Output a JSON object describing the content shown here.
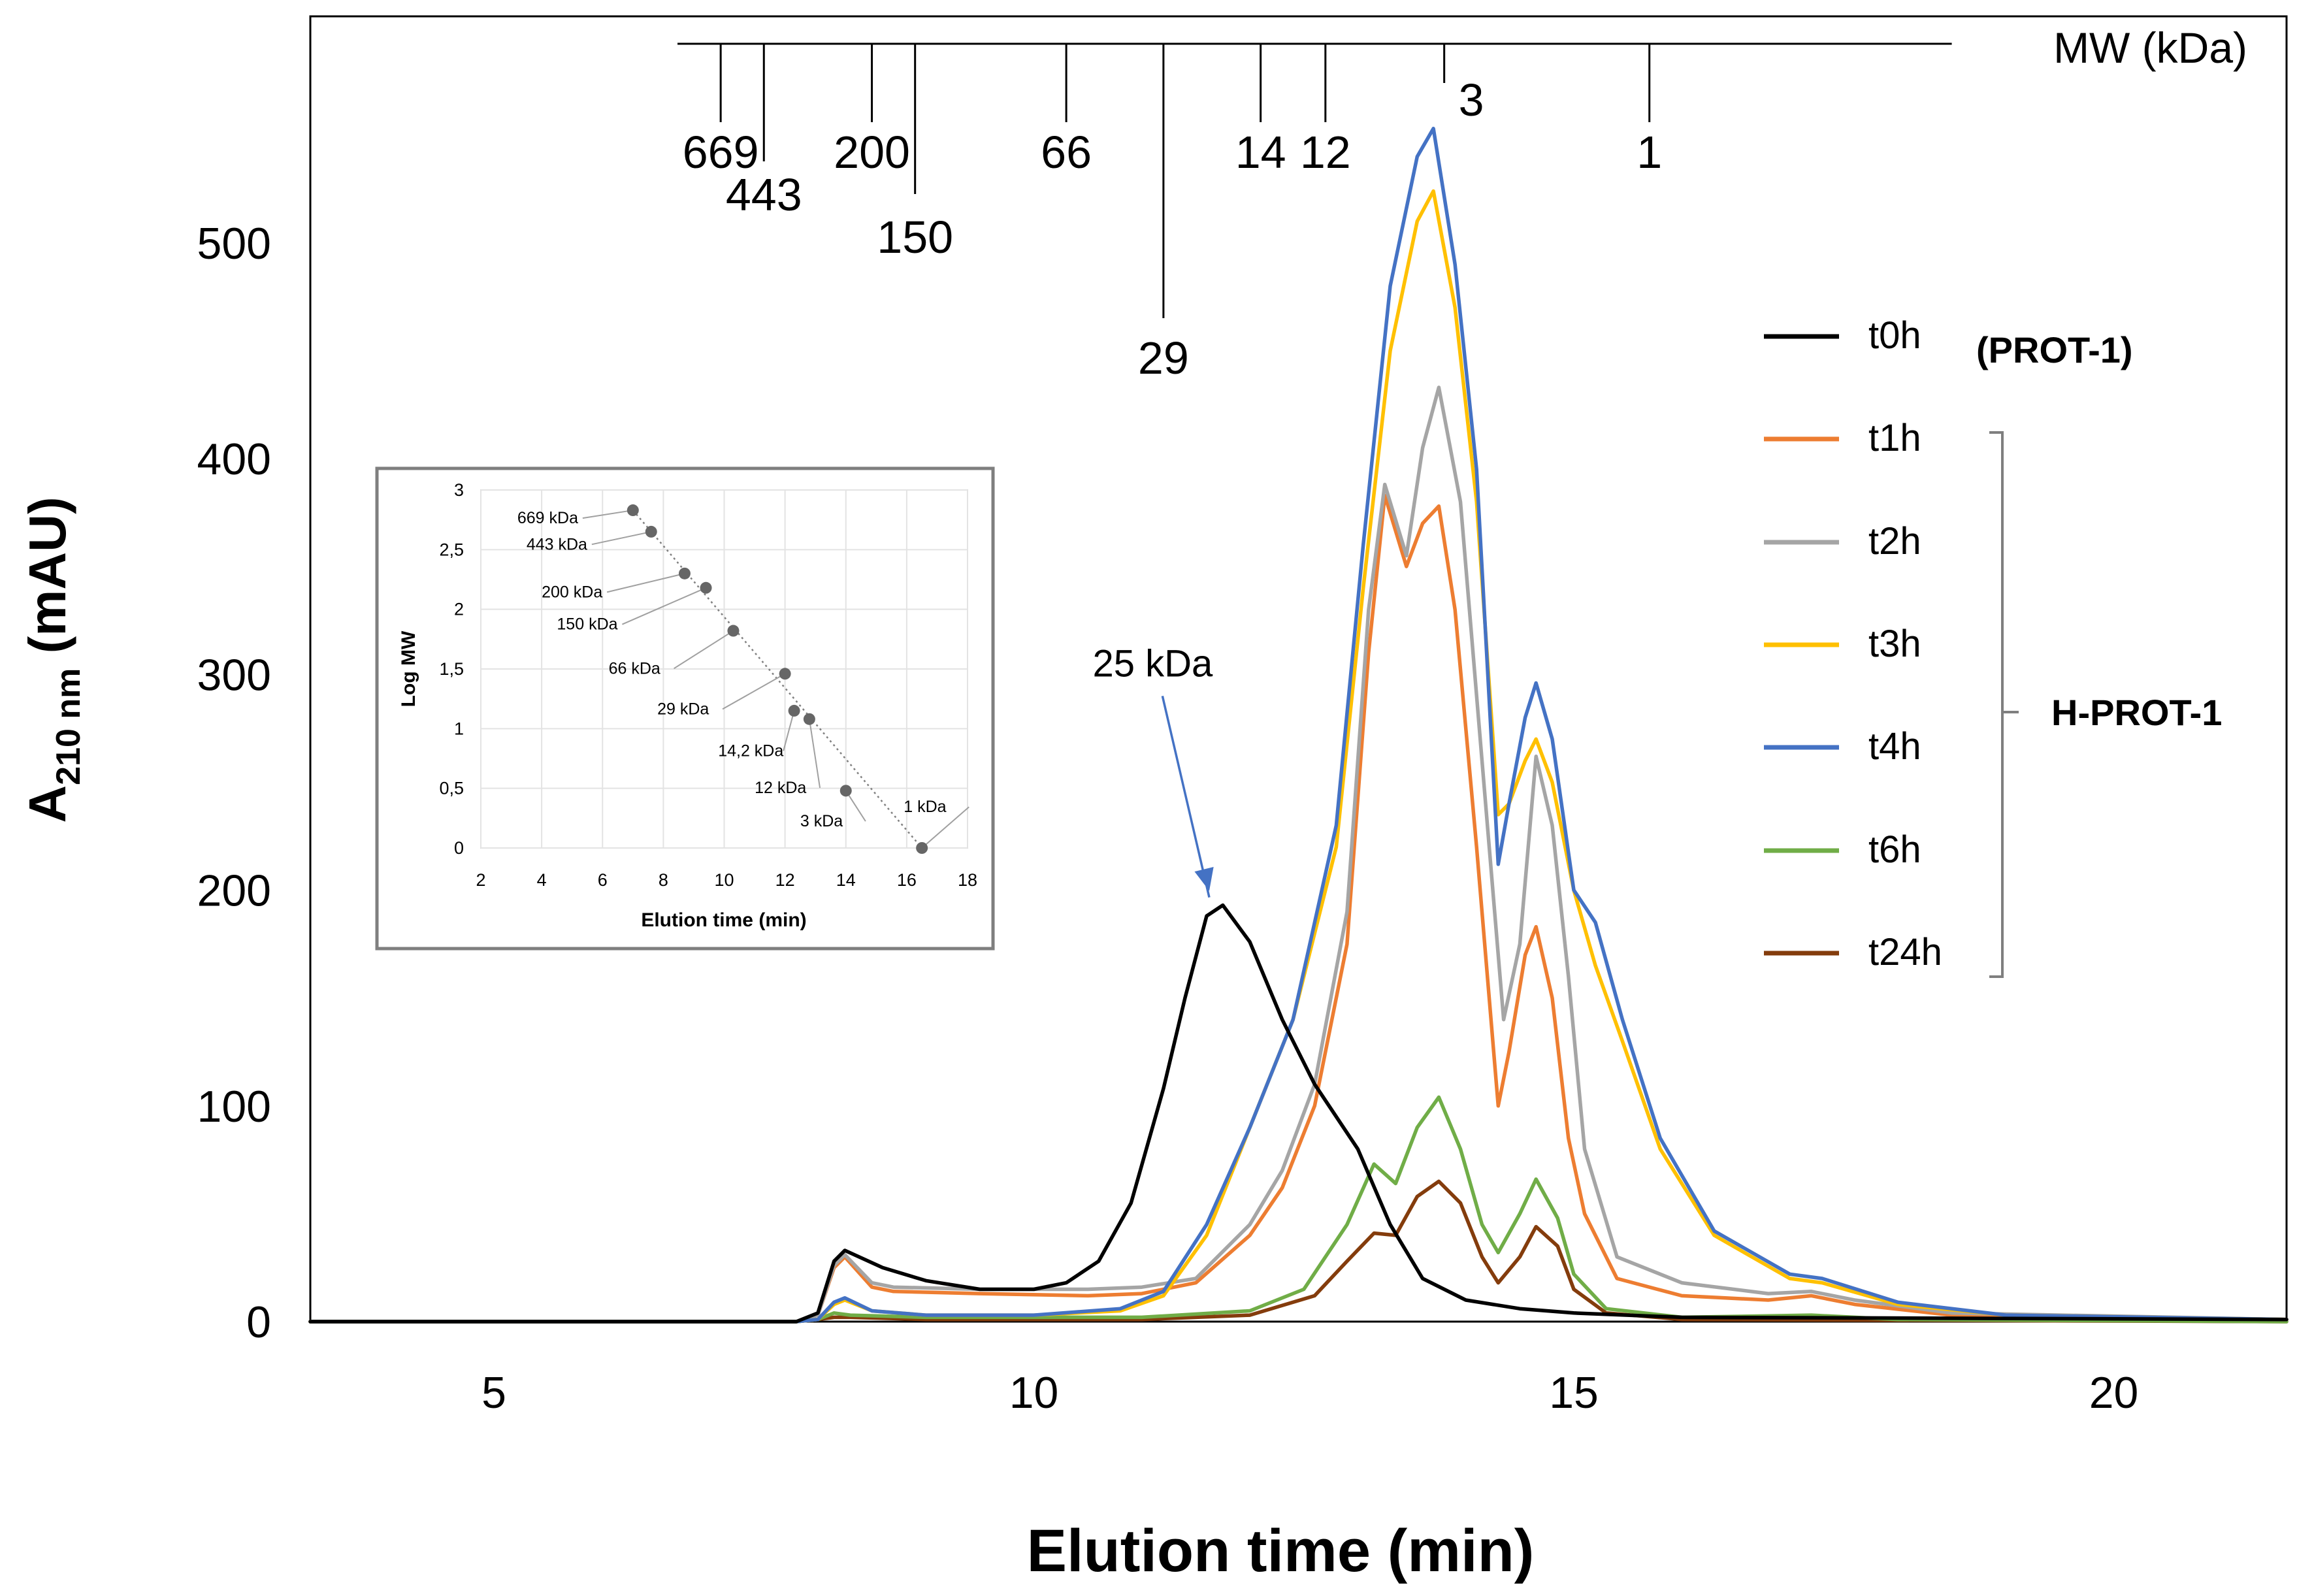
{
  "chart_data": [
    {
      "type": "line",
      "title": "",
      "xlabel": "Elution time (min)",
      "ylabel_main": "A",
      "ylabel_sub": "210 nm",
      "ylabel_unit": " (mAU)",
      "xlim": [
        3.3,
        21.6
      ],
      "ylim": [
        0,
        605
      ],
      "xticks": [
        5,
        10,
        15,
        20
      ],
      "yticks": [
        0,
        100,
        200,
        300,
        400,
        500
      ],
      "grid": false,
      "legend_position": "right",
      "group_label_prot1": "(PROT-1)",
      "group_label_hprot1": "H-PROT-1",
      "annotation": {
        "text": "25 kDa",
        "x": 11.6,
        "y": 193,
        "text_x": 11.1,
        "text_y": 293
      },
      "mw_scale": {
        "label": "MW (kDa)",
        "x_range": [
          6.7,
          18.5
        ],
        "markers": [
          {
            "label": "669",
            "x": 7.1,
            "level": 0
          },
          {
            "label": "443",
            "x": 7.5,
            "level": 2
          },
          {
            "label": "200",
            "x": 8.5,
            "level": 0
          },
          {
            "label": "150",
            "x": 8.9,
            "level": 1
          },
          {
            "label": "66",
            "x": 10.3,
            "level": 0
          },
          {
            "label": "29",
            "x": 11.2,
            "level": 3
          },
          {
            "label": "14",
            "x": 12.1,
            "level": 0
          },
          {
            "label": "12",
            "x": 12.7,
            "level": 0
          },
          {
            "label": "3",
            "x": 13.8,
            "level": 4
          },
          {
            "label": "1",
            "x": 15.7,
            "level": 0
          }
        ]
      },
      "series": [
        {
          "name": "t0h",
          "color": "#000000",
          "points": [
            [
              3.3,
              0
            ],
            [
              7.8,
              0
            ],
            [
              8.0,
              4
            ],
            [
              8.15,
              28
            ],
            [
              8.25,
              33
            ],
            [
              8.6,
              25
            ],
            [
              9.0,
              19
            ],
            [
              9.5,
              15
            ],
            [
              10.0,
              15
            ],
            [
              10.3,
              18
            ],
            [
              10.6,
              28
            ],
            [
              10.9,
              55
            ],
            [
              11.2,
              108
            ],
            [
              11.4,
              150
            ],
            [
              11.6,
              188
            ],
            [
              11.75,
              193
            ],
            [
              12.0,
              176
            ],
            [
              12.3,
              140
            ],
            [
              12.6,
              110
            ],
            [
              13.0,
              80
            ],
            [
              13.3,
              45
            ],
            [
              13.6,
              20
            ],
            [
              14.0,
              10
            ],
            [
              14.5,
              6
            ],
            [
              15.0,
              4
            ],
            [
              16.0,
              2
            ],
            [
              21.6,
              1
            ]
          ]
        },
        {
          "name": "t1h",
          "color": "#ed7d31",
          "points": [
            [
              3.3,
              0
            ],
            [
              7.8,
              0
            ],
            [
              8.0,
              3
            ],
            [
              8.15,
              25
            ],
            [
              8.25,
              30
            ],
            [
              8.5,
              16
            ],
            [
              8.7,
              14
            ],
            [
              9.5,
              13
            ],
            [
              10.5,
              12
            ],
            [
              11.0,
              13
            ],
            [
              11.5,
              18
            ],
            [
              12.0,
              40
            ],
            [
              12.3,
              62
            ],
            [
              12.6,
              100
            ],
            [
              12.9,
              175
            ],
            [
              13.1,
              310
            ],
            [
              13.25,
              383
            ],
            [
              13.45,
              350
            ],
            [
              13.6,
              370
            ],
            [
              13.75,
              378
            ],
            [
              13.9,
              330
            ],
            [
              14.1,
              220
            ],
            [
              14.3,
              100
            ],
            [
              14.4,
              125
            ],
            [
              14.55,
              170
            ],
            [
              14.65,
              183
            ],
            [
              14.8,
              150
            ],
            [
              14.95,
              85
            ],
            [
              15.1,
              50
            ],
            [
              15.4,
              20
            ],
            [
              16.0,
              12
            ],
            [
              16.8,
              10
            ],
            [
              17.2,
              12
            ],
            [
              17.6,
              8
            ],
            [
              18.5,
              3
            ],
            [
              21.6,
              1
            ]
          ]
        },
        {
          "name": "t2h",
          "color": "#a5a5a5",
          "points": [
            [
              3.3,
              0
            ],
            [
              7.8,
              0
            ],
            [
              8.0,
              3
            ],
            [
              8.15,
              26
            ],
            [
              8.25,
              31
            ],
            [
              8.5,
              18
            ],
            [
              8.7,
              16
            ],
            [
              9.5,
              15
            ],
            [
              10.5,
              15
            ],
            [
              11.0,
              16
            ],
            [
              11.5,
              20
            ],
            [
              12.0,
              45
            ],
            [
              12.3,
              70
            ],
            [
              12.6,
              110
            ],
            [
              12.9,
              190
            ],
            [
              13.1,
              330
            ],
            [
              13.25,
              388
            ],
            [
              13.45,
              355
            ],
            [
              13.6,
              405
            ],
            [
              13.75,
              433
            ],
            [
              13.95,
              380
            ],
            [
              14.15,
              260
            ],
            [
              14.35,
              140
            ],
            [
              14.5,
              175
            ],
            [
              14.65,
              262
            ],
            [
              14.8,
              230
            ],
            [
              14.95,
              160
            ],
            [
              15.1,
              80
            ],
            [
              15.4,
              30
            ],
            [
              16.0,
              18
            ],
            [
              16.8,
              13
            ],
            [
              17.2,
              14
            ],
            [
              17.6,
              10
            ],
            [
              18.5,
              4
            ],
            [
              21.6,
              1
            ]
          ]
        },
        {
          "name": "t3h",
          "color": "#ffc000",
          "points": [
            [
              3.3,
              0
            ],
            [
              7.8,
              0
            ],
            [
              8.0,
              1
            ],
            [
              8.15,
              8
            ],
            [
              8.25,
              10
            ],
            [
              8.5,
              5
            ],
            [
              9.0,
              3
            ],
            [
              10.0,
              3
            ],
            [
              10.8,
              5
            ],
            [
              11.2,
              12
            ],
            [
              11.6,
              40
            ],
            [
              12.0,
              90
            ],
            [
              12.4,
              140
            ],
            [
              12.8,
              220
            ],
            [
              13.05,
              340
            ],
            [
              13.3,
              450
            ],
            [
              13.55,
              510
            ],
            [
              13.7,
              524
            ],
            [
              13.9,
              470
            ],
            [
              14.1,
              380
            ],
            [
              14.3,
              235
            ],
            [
              14.4,
              240
            ],
            [
              14.55,
              260
            ],
            [
              14.65,
              270
            ],
            [
              14.8,
              250
            ],
            [
              15.0,
              200
            ],
            [
              15.2,
              165
            ],
            [
              15.45,
              130
            ],
            [
              15.8,
              80
            ],
            [
              16.3,
              40
            ],
            [
              17.0,
              20
            ],
            [
              17.3,
              18
            ],
            [
              18.0,
              8
            ],
            [
              19.0,
              3
            ],
            [
              21.6,
              1
            ]
          ]
        },
        {
          "name": "t4h",
          "color": "#4472c4",
          "points": [
            [
              3.3,
              0
            ],
            [
              7.8,
              0
            ],
            [
              8.0,
              1
            ],
            [
              8.15,
              9
            ],
            [
              8.25,
              11
            ],
            [
              8.5,
              5
            ],
            [
              9.0,
              3
            ],
            [
              10.0,
              3
            ],
            [
              10.8,
              6
            ],
            [
              11.2,
              14
            ],
            [
              11.6,
              45
            ],
            [
              12.0,
              90
            ],
            [
              12.4,
              140
            ],
            [
              12.8,
              230
            ],
            [
              13.05,
              360
            ],
            [
              13.3,
              480
            ],
            [
              13.55,
              540
            ],
            [
              13.7,
              553
            ],
            [
              13.9,
              490
            ],
            [
              14.1,
              395
            ],
            [
              14.3,
              212
            ],
            [
              14.4,
              240
            ],
            [
              14.55,
              280
            ],
            [
              14.65,
              296
            ],
            [
              14.8,
              270
            ],
            [
              15.0,
              200
            ],
            [
              15.2,
              185
            ],
            [
              15.45,
              140
            ],
            [
              15.8,
              85
            ],
            [
              16.3,
              42
            ],
            [
              17.0,
              22
            ],
            [
              17.3,
              20
            ],
            [
              18.0,
              9
            ],
            [
              19.0,
              3
            ],
            [
              21.6,
              1
            ]
          ]
        },
        {
          "name": "t6h",
          "color": "#70ad47",
          "points": [
            [
              3.3,
              0
            ],
            [
              7.8,
              0
            ],
            [
              8.0,
              1
            ],
            [
              8.15,
              4
            ],
            [
              8.3,
              3
            ],
            [
              9.0,
              2
            ],
            [
              11.0,
              2
            ],
            [
              12.0,
              5
            ],
            [
              12.5,
              15
            ],
            [
              12.9,
              45
            ],
            [
              13.15,
              73
            ],
            [
              13.35,
              64
            ],
            [
              13.55,
              90
            ],
            [
              13.75,
              104
            ],
            [
              13.95,
              80
            ],
            [
              14.15,
              45
            ],
            [
              14.3,
              32
            ],
            [
              14.5,
              50
            ],
            [
              14.65,
              66
            ],
            [
              14.85,
              48
            ],
            [
              15.0,
              22
            ],
            [
              15.3,
              6
            ],
            [
              16.0,
              2
            ],
            [
              17.2,
              3
            ],
            [
              18.0,
              1
            ],
            [
              21.6,
              0
            ]
          ]
        },
        {
          "name": "t24h",
          "color": "#843c0c",
          "points": [
            [
              3.3,
              0
            ],
            [
              7.8,
              0
            ],
            [
              8.0,
              1
            ],
            [
              8.15,
              2
            ],
            [
              8.3,
              2
            ],
            [
              9.0,
              1
            ],
            [
              11.0,
              1
            ],
            [
              12.0,
              3
            ],
            [
              12.6,
              12
            ],
            [
              12.9,
              28
            ],
            [
              13.15,
              41
            ],
            [
              13.35,
              40
            ],
            [
              13.55,
              58
            ],
            [
              13.75,
              65
            ],
            [
              13.95,
              55
            ],
            [
              14.15,
              30
            ],
            [
              14.3,
              18
            ],
            [
              14.5,
              30
            ],
            [
              14.65,
              44
            ],
            [
              14.85,
              35
            ],
            [
              15.0,
              15
            ],
            [
              15.3,
              4
            ],
            [
              16.0,
              1
            ],
            [
              21.6,
              0
            ]
          ]
        }
      ]
    },
    {
      "type": "scatter",
      "title": "",
      "xlabel": "Elution time (min)",
      "ylabel": "Log MW",
      "xlim": [
        2,
        18
      ],
      "ylim": [
        0,
        3
      ],
      "xticks": [
        2,
        4,
        6,
        8,
        10,
        12,
        14,
        16,
        18
      ],
      "yticks": [
        0,
        0.5,
        1,
        1.5,
        2,
        2.5,
        3
      ],
      "ytick_labels": [
        "0",
        "0,5",
        "1",
        "1,5",
        "2",
        "2,5",
        "3"
      ],
      "points": [
        {
          "label": "669 kDa",
          "x": 7.0,
          "y": 2.83,
          "lx": 3.2,
          "ly": 2.72
        },
        {
          "label": "443 kDa",
          "x": 7.6,
          "y": 2.65,
          "lx": 3.5,
          "ly": 2.5
        },
        {
          "label": "200 kDa",
          "x": 8.7,
          "y": 2.3,
          "lx": 4.0,
          "ly": 2.1
        },
        {
          "label": "150 kDa",
          "x": 9.4,
          "y": 2.18,
          "lx": 4.5,
          "ly": 1.83
        },
        {
          "label": "66 kDa",
          "x": 10.3,
          "y": 1.82,
          "lx": 6.2,
          "ly": 1.46
        },
        {
          "label": "29 kDa",
          "x": 12.0,
          "y": 1.46,
          "lx": 7.8,
          "ly": 1.12
        },
        {
          "label": "14,2 kDa",
          "x": 12.3,
          "y": 1.15,
          "lx": 9.8,
          "ly": 0.77
        },
        {
          "label": "12 kDa",
          "x": 12.8,
          "y": 1.08,
          "lx": 11.0,
          "ly": 0.46
        },
        {
          "label": "3 kDa",
          "x": 14.0,
          "y": 0.48,
          "lx": 12.5,
          "ly": 0.18
        },
        {
          "label": "1 kDa",
          "x": 16.5,
          "y": 0.0,
          "lx": 15.9,
          "ly": 0.3
        }
      ]
    }
  ]
}
